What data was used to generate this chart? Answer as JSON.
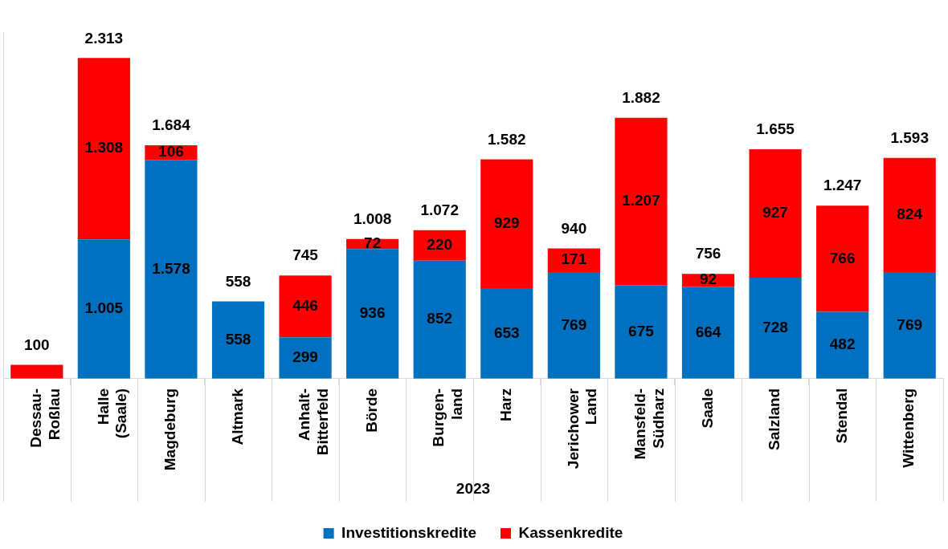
{
  "chart_data": {
    "type": "bar",
    "stacked": true,
    "xlabel": "2023",
    "legend": "bottom",
    "tick_labels": "x",
    "grid": false,
    "categories": [
      "Dessau-\nRoßlau",
      "Halle\n(Saale)",
      "Magdeburg",
      "Altmark",
      "Anhalt-\nBitterfeld",
      "Börde",
      "Burgen-\nland",
      "Harz",
      "Jerichower\nLand",
      "Mansfeld-\nSüdharz",
      "Saale",
      "Salzland",
      "Stendal",
      "Wittenberg"
    ],
    "series": [
      {
        "name": "Investitionskredite",
        "color": "#0070c0",
        "values": [
          null,
          1005,
          1578,
          558,
          299,
          936,
          852,
          653,
          769,
          675,
          664,
          728,
          482,
          769
        ],
        "value_labels": [
          null,
          "1.005",
          "1.578",
          "558",
          "299",
          "936",
          "852",
          "653",
          "769",
          "675",
          "664",
          "728",
          "482",
          "769"
        ]
      },
      {
        "name": "Kassenkredite",
        "color": "#ff0000",
        "values": [
          100,
          1308,
          106,
          null,
          446,
          72,
          220,
          929,
          171,
          1207,
          92,
          927,
          766,
          824
        ],
        "value_labels": [
          null,
          "1.308",
          "106",
          null,
          "446",
          "72",
          "220",
          "929",
          "171",
          "1.207",
          "92",
          "927",
          "766",
          "824"
        ]
      }
    ],
    "totals": [
      "100",
      "2.313",
      "1.684",
      "558",
      "745",
      "1.008",
      "1.072",
      "1.582",
      "940",
      "1.882",
      "756",
      "1.655",
      "1.247",
      "1.593"
    ]
  }
}
